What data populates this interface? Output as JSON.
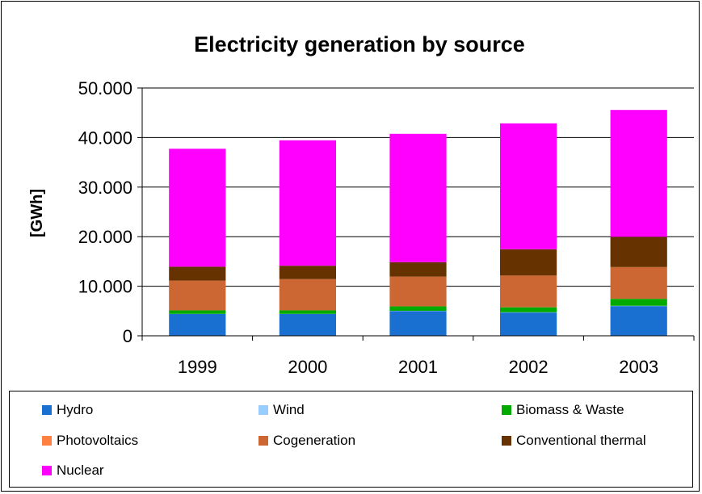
{
  "chart_data": {
    "type": "bar",
    "stacked": true,
    "title": "Electricity generation by source",
    "xlabel": "",
    "ylabel": "[GWh]",
    "ylim": [
      0,
      50000
    ],
    "yticks": [
      0,
      10000,
      20000,
      30000,
      40000,
      50000
    ],
    "ytick_labels": [
      "0",
      "10.000",
      "20.000",
      "30.000",
      "40.000",
      "50.000"
    ],
    "categories": [
      "1999",
      "2000",
      "2001",
      "2002",
      "2003"
    ],
    "grid": "horizontal",
    "legend_position": "bottom",
    "series": [
      {
        "name": "Hydro",
        "color": "#1a70d0",
        "values": [
          4400,
          4400,
          5000,
          4700,
          6000
        ]
      },
      {
        "name": "Wind",
        "color": "#99ccff",
        "values": [
          30,
          30,
          40,
          50,
          60
        ]
      },
      {
        "name": "Biomass & Waste",
        "color": "#00aa00",
        "values": [
          700,
          700,
          900,
          1000,
          1400
        ]
      },
      {
        "name": "Photovoltaics",
        "color": "#ff8040",
        "values": [
          10,
          10,
          10,
          10,
          10
        ]
      },
      {
        "name": "Cogeneration",
        "color": "#cc6633",
        "values": [
          6000,
          6300,
          6000,
          6400,
          6400
        ]
      },
      {
        "name": "Conventional thermal",
        "color": "#663300",
        "values": [
          2800,
          2700,
          2900,
          5300,
          6100
        ]
      },
      {
        "name": "Nuclear",
        "color": "#ff00ff",
        "values": [
          23800,
          25300,
          25900,
          25400,
          25600
        ]
      }
    ]
  }
}
